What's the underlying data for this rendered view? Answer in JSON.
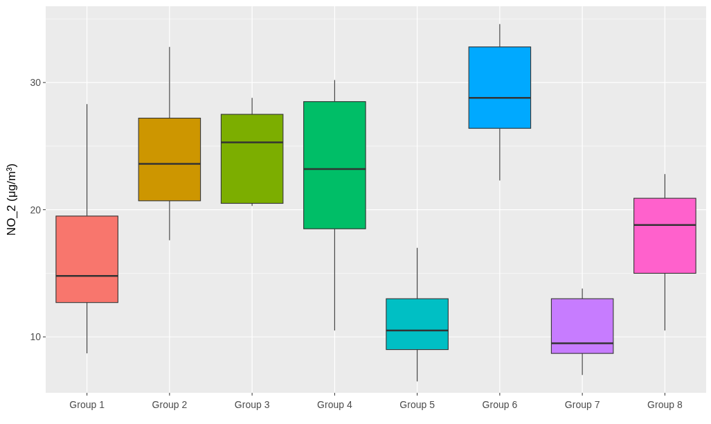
{
  "chart_data": {
    "type": "box",
    "ylabel": "NO_2  (μg/m³)",
    "categories": [
      "Group 1",
      "Group 2",
      "Group 3",
      "Group 4",
      "Group 5",
      "Group 6",
      "Group 7",
      "Group 8"
    ],
    "colors": [
      "#f8766d",
      "#cd9600",
      "#7cae00",
      "#00be67",
      "#00bfc4",
      "#00a9ff",
      "#c77cff",
      "#ff61cc"
    ],
    "boxes": [
      {
        "low": 8.7,
        "q1": 12.7,
        "median": 14.8,
        "q3": 19.5,
        "high": 28.3
      },
      {
        "low": 17.6,
        "q1": 20.7,
        "median": 23.6,
        "q3": 27.2,
        "high": 32.8
      },
      {
        "low": 20.3,
        "q1": 20.5,
        "median": 25.3,
        "q3": 27.5,
        "high": 28.8
      },
      {
        "low": 10.5,
        "q1": 18.5,
        "median": 23.2,
        "q3": 28.5,
        "high": 30.2
      },
      {
        "low": 6.5,
        "q1": 9.0,
        "median": 10.5,
        "q3": 13.0,
        "high": 17.0
      },
      {
        "low": 22.3,
        "q1": 26.4,
        "median": 28.8,
        "q3": 32.8,
        "high": 34.6
      },
      {
        "low": 7.0,
        "q1": 8.7,
        "median": 9.5,
        "q3": 13.0,
        "high": 13.8
      },
      {
        "low": 10.5,
        "q1": 15.0,
        "median": 18.8,
        "q3": 20.9,
        "high": 22.8
      }
    ],
    "ylim": [
      5.6,
      36
    ],
    "yticks": [
      10,
      20,
      30
    ],
    "grid": true
  }
}
